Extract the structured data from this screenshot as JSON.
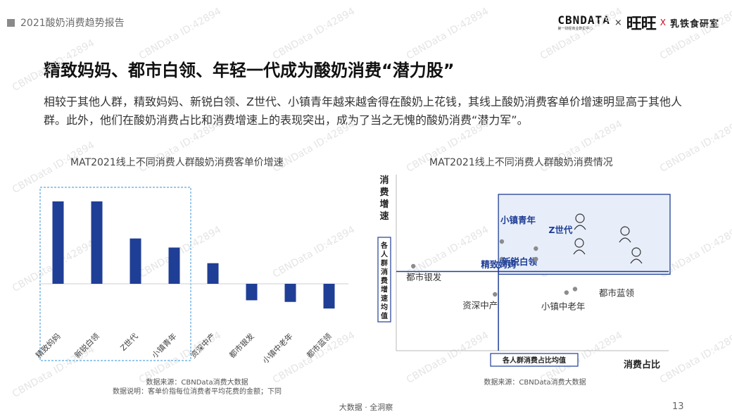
{
  "header": {
    "report_title": "2021酸奶消费趋势报告",
    "logo_cbn": "CBNDATA",
    "logo_cbn_sub": "第一财经商业数据中心",
    "logo_x1": "×",
    "logo_wangwang": "旺旺",
    "logo_x2": "X",
    "logo_lab": "乳铁食研室"
  },
  "title": "精致妈妈、都市白领、年轻一代成为酸奶消费“潜力股”",
  "intro": "相较于其他人群，精致妈妈、新锐白领、Z世代、小镇青年越来越舍得在酸奶上花钱，其线上酸奶消费客单价增速明显高于其他人群。此外，他们在酸奶消费占比和消费增速上的表现突出，成为了当之无愧的酸奶消费“潜力军”。",
  "watermark_text": "CBNData ID:42894",
  "chart_data": [
    {
      "type": "bar",
      "title": "MAT2021线上不同消费人群酸奶消费客单价增速",
      "categories": [
        "精致妈妈",
        "新锐白领",
        "Z世代",
        "小镇青年",
        "资深中产",
        "都市银发",
        "小镇中老年",
        "都市蓝领"
      ],
      "values": [
        1.0,
        1.0,
        0.55,
        0.44,
        0.25,
        -0.2,
        -0.22,
        -0.3
      ],
      "highlighted_categories": [
        "精致妈妈",
        "新锐白领",
        "Z世代",
        "小镇青年"
      ],
      "bar_color": "#1f3e96",
      "highlight_border_color": "#5aa7e0",
      "ylim": [
        -0.4,
        1.1
      ],
      "footnote_1": "数据来源：CBNData消费大数据",
      "footnote_2": "数据说明：客单价指每位消费者平均花费的金额；下同"
    },
    {
      "type": "scatter",
      "title": "MAT2021线上不同消费人群酸奶消费情况",
      "xlabel": "消费占比",
      "ylabel": "消费增速",
      "avg_x_label": "各人群消费占比均值",
      "avg_y_label": "各人群消费增速均值",
      "avg_x": 0.0,
      "avg_y": 0.0,
      "xlim": [
        -0.6,
        1.0
      ],
      "ylim": [
        -0.45,
        0.55
      ],
      "points": [
        {
          "name": "小镇青年",
          "x": 0.02,
          "y": 0.17
        },
        {
          "name": "新锐白领",
          "x": 0.02,
          "y": 0.07
        },
        {
          "name": "Z世代",
          "x": 0.22,
          "y": 0.13
        },
        {
          "name": "精致妈妈",
          "x": 0.22,
          "y": 0.07
        },
        {
          "name": "都市银发",
          "x": -0.5,
          "y": 0.03
        },
        {
          "name": "资深中产",
          "x": -0.02,
          "y": -0.13
        },
        {
          "name": "小镇中老年",
          "x": 0.4,
          "y": -0.12
        },
        {
          "name": "都市蓝领",
          "x": 0.45,
          "y": -0.1
        }
      ],
      "highlighted_points": [
        "小镇青年",
        "新锐白领",
        "Z世代",
        "精致妈妈"
      ],
      "point_color": "#8c8c8c",
      "highlight_label_color": "#1f3e96",
      "quadrant_border_color": "#1f3e96",
      "quadrant_fill_color": "#e8eef9",
      "footnote_1": "数据来源：CBNData消费大数据"
    }
  ],
  "footer": {
    "center": "大数据 · 全洞察",
    "page_number": "13"
  }
}
